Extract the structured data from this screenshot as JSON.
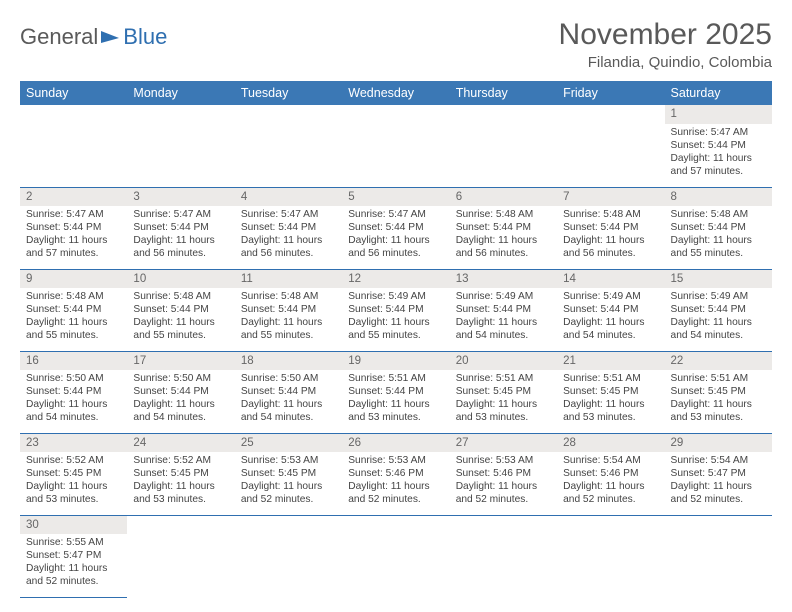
{
  "logo": {
    "text1": "General",
    "text2": "Blue"
  },
  "header": {
    "title": "November 2025",
    "subtitle": "Filandia, Quindio, Colombia"
  },
  "colors": {
    "header_bg": "#3b78b5",
    "header_text": "#ffffff",
    "daynum_bg": "#eceae8",
    "border": "#2f6fb0",
    "title_color": "#595959"
  },
  "weekdays": [
    "Sunday",
    "Monday",
    "Tuesday",
    "Wednesday",
    "Thursday",
    "Friday",
    "Saturday"
  ],
  "weeks": [
    [
      null,
      null,
      null,
      null,
      null,
      null,
      {
        "day": "1",
        "sunrise": "Sunrise: 5:47 AM",
        "sunset": "Sunset: 5:44 PM",
        "daylight": "Daylight: 11 hours and 57 minutes."
      }
    ],
    [
      {
        "day": "2",
        "sunrise": "Sunrise: 5:47 AM",
        "sunset": "Sunset: 5:44 PM",
        "daylight": "Daylight: 11 hours and 57 minutes."
      },
      {
        "day": "3",
        "sunrise": "Sunrise: 5:47 AM",
        "sunset": "Sunset: 5:44 PM",
        "daylight": "Daylight: 11 hours and 56 minutes."
      },
      {
        "day": "4",
        "sunrise": "Sunrise: 5:47 AM",
        "sunset": "Sunset: 5:44 PM",
        "daylight": "Daylight: 11 hours and 56 minutes."
      },
      {
        "day": "5",
        "sunrise": "Sunrise: 5:47 AM",
        "sunset": "Sunset: 5:44 PM",
        "daylight": "Daylight: 11 hours and 56 minutes."
      },
      {
        "day": "6",
        "sunrise": "Sunrise: 5:48 AM",
        "sunset": "Sunset: 5:44 PM",
        "daylight": "Daylight: 11 hours and 56 minutes."
      },
      {
        "day": "7",
        "sunrise": "Sunrise: 5:48 AM",
        "sunset": "Sunset: 5:44 PM",
        "daylight": "Daylight: 11 hours and 56 minutes."
      },
      {
        "day": "8",
        "sunrise": "Sunrise: 5:48 AM",
        "sunset": "Sunset: 5:44 PM",
        "daylight": "Daylight: 11 hours and 55 minutes."
      }
    ],
    [
      {
        "day": "9",
        "sunrise": "Sunrise: 5:48 AM",
        "sunset": "Sunset: 5:44 PM",
        "daylight": "Daylight: 11 hours and 55 minutes."
      },
      {
        "day": "10",
        "sunrise": "Sunrise: 5:48 AM",
        "sunset": "Sunset: 5:44 PM",
        "daylight": "Daylight: 11 hours and 55 minutes."
      },
      {
        "day": "11",
        "sunrise": "Sunrise: 5:48 AM",
        "sunset": "Sunset: 5:44 PM",
        "daylight": "Daylight: 11 hours and 55 minutes."
      },
      {
        "day": "12",
        "sunrise": "Sunrise: 5:49 AM",
        "sunset": "Sunset: 5:44 PM",
        "daylight": "Daylight: 11 hours and 55 minutes."
      },
      {
        "day": "13",
        "sunrise": "Sunrise: 5:49 AM",
        "sunset": "Sunset: 5:44 PM",
        "daylight": "Daylight: 11 hours and 54 minutes."
      },
      {
        "day": "14",
        "sunrise": "Sunrise: 5:49 AM",
        "sunset": "Sunset: 5:44 PM",
        "daylight": "Daylight: 11 hours and 54 minutes."
      },
      {
        "day": "15",
        "sunrise": "Sunrise: 5:49 AM",
        "sunset": "Sunset: 5:44 PM",
        "daylight": "Daylight: 11 hours and 54 minutes."
      }
    ],
    [
      {
        "day": "16",
        "sunrise": "Sunrise: 5:50 AM",
        "sunset": "Sunset: 5:44 PM",
        "daylight": "Daylight: 11 hours and 54 minutes."
      },
      {
        "day": "17",
        "sunrise": "Sunrise: 5:50 AM",
        "sunset": "Sunset: 5:44 PM",
        "daylight": "Daylight: 11 hours and 54 minutes."
      },
      {
        "day": "18",
        "sunrise": "Sunrise: 5:50 AM",
        "sunset": "Sunset: 5:44 PM",
        "daylight": "Daylight: 11 hours and 54 minutes."
      },
      {
        "day": "19",
        "sunrise": "Sunrise: 5:51 AM",
        "sunset": "Sunset: 5:44 PM",
        "daylight": "Daylight: 11 hours and 53 minutes."
      },
      {
        "day": "20",
        "sunrise": "Sunrise: 5:51 AM",
        "sunset": "Sunset: 5:45 PM",
        "daylight": "Daylight: 11 hours and 53 minutes."
      },
      {
        "day": "21",
        "sunrise": "Sunrise: 5:51 AM",
        "sunset": "Sunset: 5:45 PM",
        "daylight": "Daylight: 11 hours and 53 minutes."
      },
      {
        "day": "22",
        "sunrise": "Sunrise: 5:51 AM",
        "sunset": "Sunset: 5:45 PM",
        "daylight": "Daylight: 11 hours and 53 minutes."
      }
    ],
    [
      {
        "day": "23",
        "sunrise": "Sunrise: 5:52 AM",
        "sunset": "Sunset: 5:45 PM",
        "daylight": "Daylight: 11 hours and 53 minutes."
      },
      {
        "day": "24",
        "sunrise": "Sunrise: 5:52 AM",
        "sunset": "Sunset: 5:45 PM",
        "daylight": "Daylight: 11 hours and 53 minutes."
      },
      {
        "day": "25",
        "sunrise": "Sunrise: 5:53 AM",
        "sunset": "Sunset: 5:45 PM",
        "daylight": "Daylight: 11 hours and 52 minutes."
      },
      {
        "day": "26",
        "sunrise": "Sunrise: 5:53 AM",
        "sunset": "Sunset: 5:46 PM",
        "daylight": "Daylight: 11 hours and 52 minutes."
      },
      {
        "day": "27",
        "sunrise": "Sunrise: 5:53 AM",
        "sunset": "Sunset: 5:46 PM",
        "daylight": "Daylight: 11 hours and 52 minutes."
      },
      {
        "day": "28",
        "sunrise": "Sunrise: 5:54 AM",
        "sunset": "Sunset: 5:46 PM",
        "daylight": "Daylight: 11 hours and 52 minutes."
      },
      {
        "day": "29",
        "sunrise": "Sunrise: 5:54 AM",
        "sunset": "Sunset: 5:47 PM",
        "daylight": "Daylight: 11 hours and 52 minutes."
      }
    ],
    [
      {
        "day": "30",
        "sunrise": "Sunrise: 5:55 AM",
        "sunset": "Sunset: 5:47 PM",
        "daylight": "Daylight: 11 hours and 52 minutes."
      },
      null,
      null,
      null,
      null,
      null,
      null
    ]
  ]
}
